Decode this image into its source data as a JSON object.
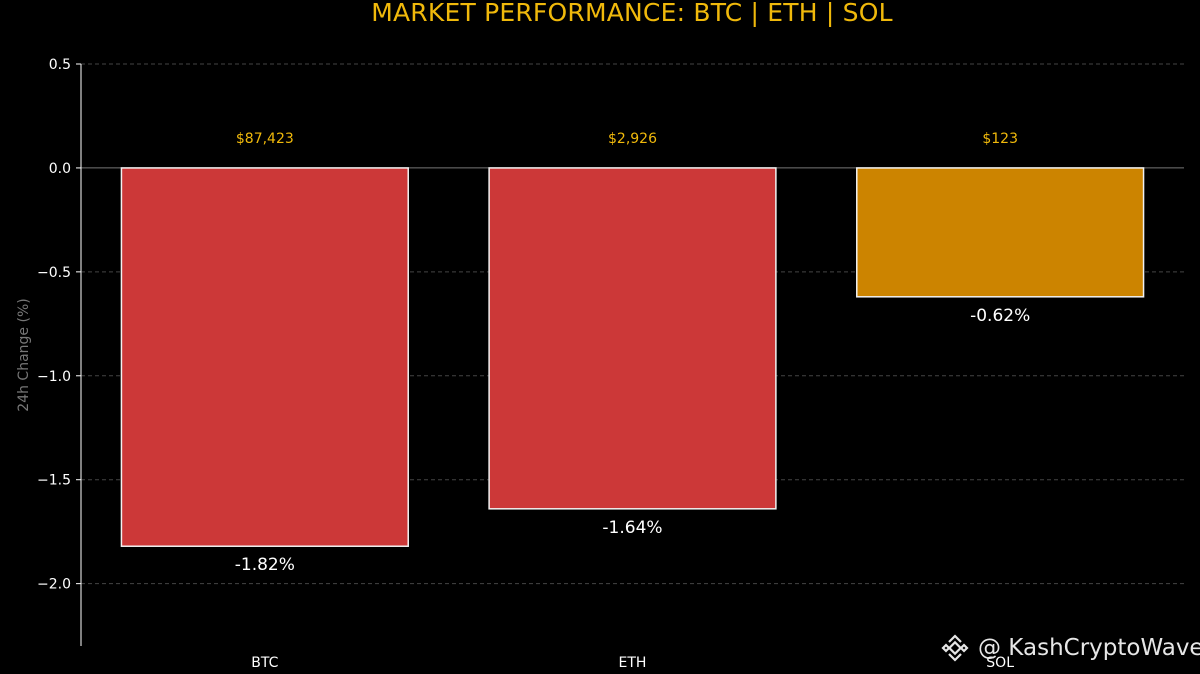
{
  "title": "MARKET PERFORMANCE: BTC | ETH | SOL",
  "watermark": "@ KashCryptoWave",
  "colors": {
    "background": "#000000",
    "title": "#f0b90b",
    "negative_large": "#cc3838",
    "negative_small": "#cc8400",
    "price_label": "#f0b90b",
    "bar_border": "#f2f2f2",
    "axis_text": "#ffffff",
    "ylabel_text": "#777777",
    "grid": "#444444"
  },
  "chart_data": {
    "type": "bar",
    "title": "MARKET PERFORMANCE: BTC | ETH | SOL",
    "xlabel": "",
    "ylabel": "24h Change (%)",
    "ylim": [
      -2.3,
      0.5
    ],
    "yticks": [
      0.5,
      0.0,
      -0.5,
      -1.0,
      -1.5,
      -2.0
    ],
    "ytick_labels": [
      "0.5",
      "0.0",
      "−0.5",
      "−1.0",
      "−1.5",
      "−2.0"
    ],
    "grid": true,
    "categories": [
      "BTC",
      "ETH",
      "SOL"
    ],
    "values": [
      -1.82,
      -1.64,
      -0.62
    ],
    "value_labels": [
      "-1.82%",
      "-1.64%",
      "-0.62%"
    ],
    "price_labels": [
      "$87,423",
      "$2,926",
      "$123"
    ],
    "bar_colors": [
      "#cc3838",
      "#cc3838",
      "#cc8400"
    ]
  }
}
